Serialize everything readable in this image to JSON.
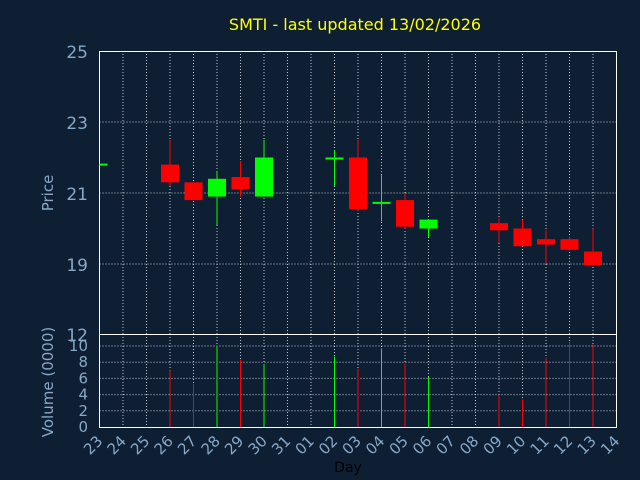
{
  "title": "SMTI - last updated 13/02/2026",
  "colors": {
    "background": "#0f1f33",
    "title": "#ffff00",
    "axis_text": "#87a8c8",
    "up": "#00ff00",
    "down": "#ff0000",
    "grid": "#ffffff"
  },
  "chart_data": [
    {
      "type": "candlestick",
      "title": "SMTI - last updated 13/02/2026",
      "ylabel": "Price",
      "ylim": [
        12,
        25
      ],
      "yticks": [
        25,
        23,
        21,
        19,
        12
      ],
      "grid": true,
      "x_tick_labels": [
        "23",
        "24",
        "25",
        "26",
        "27",
        "28",
        "29",
        "30",
        "31",
        "01",
        "02",
        "03",
        "04",
        "05",
        "06",
        "07",
        "08",
        "09",
        "10",
        "11",
        "12",
        "13",
        "14"
      ],
      "candles": [
        {
          "day": "23",
          "open": 21.8,
          "high": 21.8,
          "low": 21.8,
          "close": 21.8
        },
        {
          "day": "26",
          "open": 21.8,
          "high": 22.5,
          "low": 21.2,
          "close": 21.3
        },
        {
          "day": "27",
          "open": 21.3,
          "high": 21.3,
          "low": 20.8,
          "close": 20.8
        },
        {
          "day": "28",
          "open": 20.9,
          "high": 21.6,
          "low": 20.1,
          "close": 21.4
        },
        {
          "day": "29",
          "open": 21.45,
          "high": 21.9,
          "low": 20.9,
          "close": 21.1
        },
        {
          "day": "30",
          "open": 20.9,
          "high": 22.5,
          "low": 20.9,
          "close": 22.0
        },
        {
          "day": "02",
          "open": 22.0,
          "high": 22.2,
          "low": 21.2,
          "close": 22.0
        },
        {
          "day": "03",
          "open": 22.0,
          "high": 22.5,
          "low": 20.5,
          "close": 20.55
        },
        {
          "day": "04",
          "open": 20.75,
          "high": 21.5,
          "low": 20.2,
          "close": 20.75
        },
        {
          "day": "05",
          "open": 20.8,
          "high": 21.0,
          "low": 20.0,
          "close": 20.05
        },
        {
          "day": "06",
          "open": 20.0,
          "high": 20.25,
          "low": 19.75,
          "close": 20.25
        },
        {
          "day": "09",
          "open": 20.15,
          "high": 20.3,
          "low": 19.6,
          "close": 19.95
        },
        {
          "day": "10",
          "open": 20.0,
          "high": 20.25,
          "low": 19.5,
          "close": 19.5
        },
        {
          "day": "11",
          "open": 19.7,
          "high": 19.95,
          "low": 19.0,
          "close": 19.55
        },
        {
          "day": "12",
          "open": 19.7,
          "high": 19.75,
          "low": 19.4,
          "close": 19.4
        },
        {
          "day": "13",
          "open": 19.35,
          "high": 20.0,
          "low": 18.9,
          "close": 18.9
        }
      ]
    },
    {
      "type": "bar",
      "ylabel": "Volume (0000)",
      "xlabel": "Day",
      "ylim": [
        0,
        11
      ],
      "yticks": [
        0,
        2,
        4,
        6,
        8,
        10
      ],
      "grid": true,
      "bars": [
        {
          "day": "26",
          "value": 7.0,
          "color": "down"
        },
        {
          "day": "27",
          "value": 5.3,
          "color": "down"
        },
        {
          "day": "28",
          "value": 10.0,
          "color": "up"
        },
        {
          "day": "29",
          "value": 8.3,
          "color": "down"
        },
        {
          "day": "30",
          "value": 7.8,
          "color": "up"
        },
        {
          "day": "02",
          "value": 8.7,
          "color": "up"
        },
        {
          "day": "03",
          "value": 7.2,
          "color": "down"
        },
        {
          "day": "04",
          "value": 9.7,
          "color": "up"
        },
        {
          "day": "05",
          "value": 7.8,
          "color": "down"
        },
        {
          "day": "06",
          "value": 6.2,
          "color": "up"
        },
        {
          "day": "09",
          "value": 3.9,
          "color": "down"
        },
        {
          "day": "10",
          "value": 3.4,
          "color": "down"
        },
        {
          "day": "11",
          "value": 8.5,
          "color": "down"
        },
        {
          "day": "12",
          "value": 10.5,
          "color": "down"
        },
        {
          "day": "13",
          "value": 10.2,
          "color": "down"
        }
      ]
    }
  ]
}
